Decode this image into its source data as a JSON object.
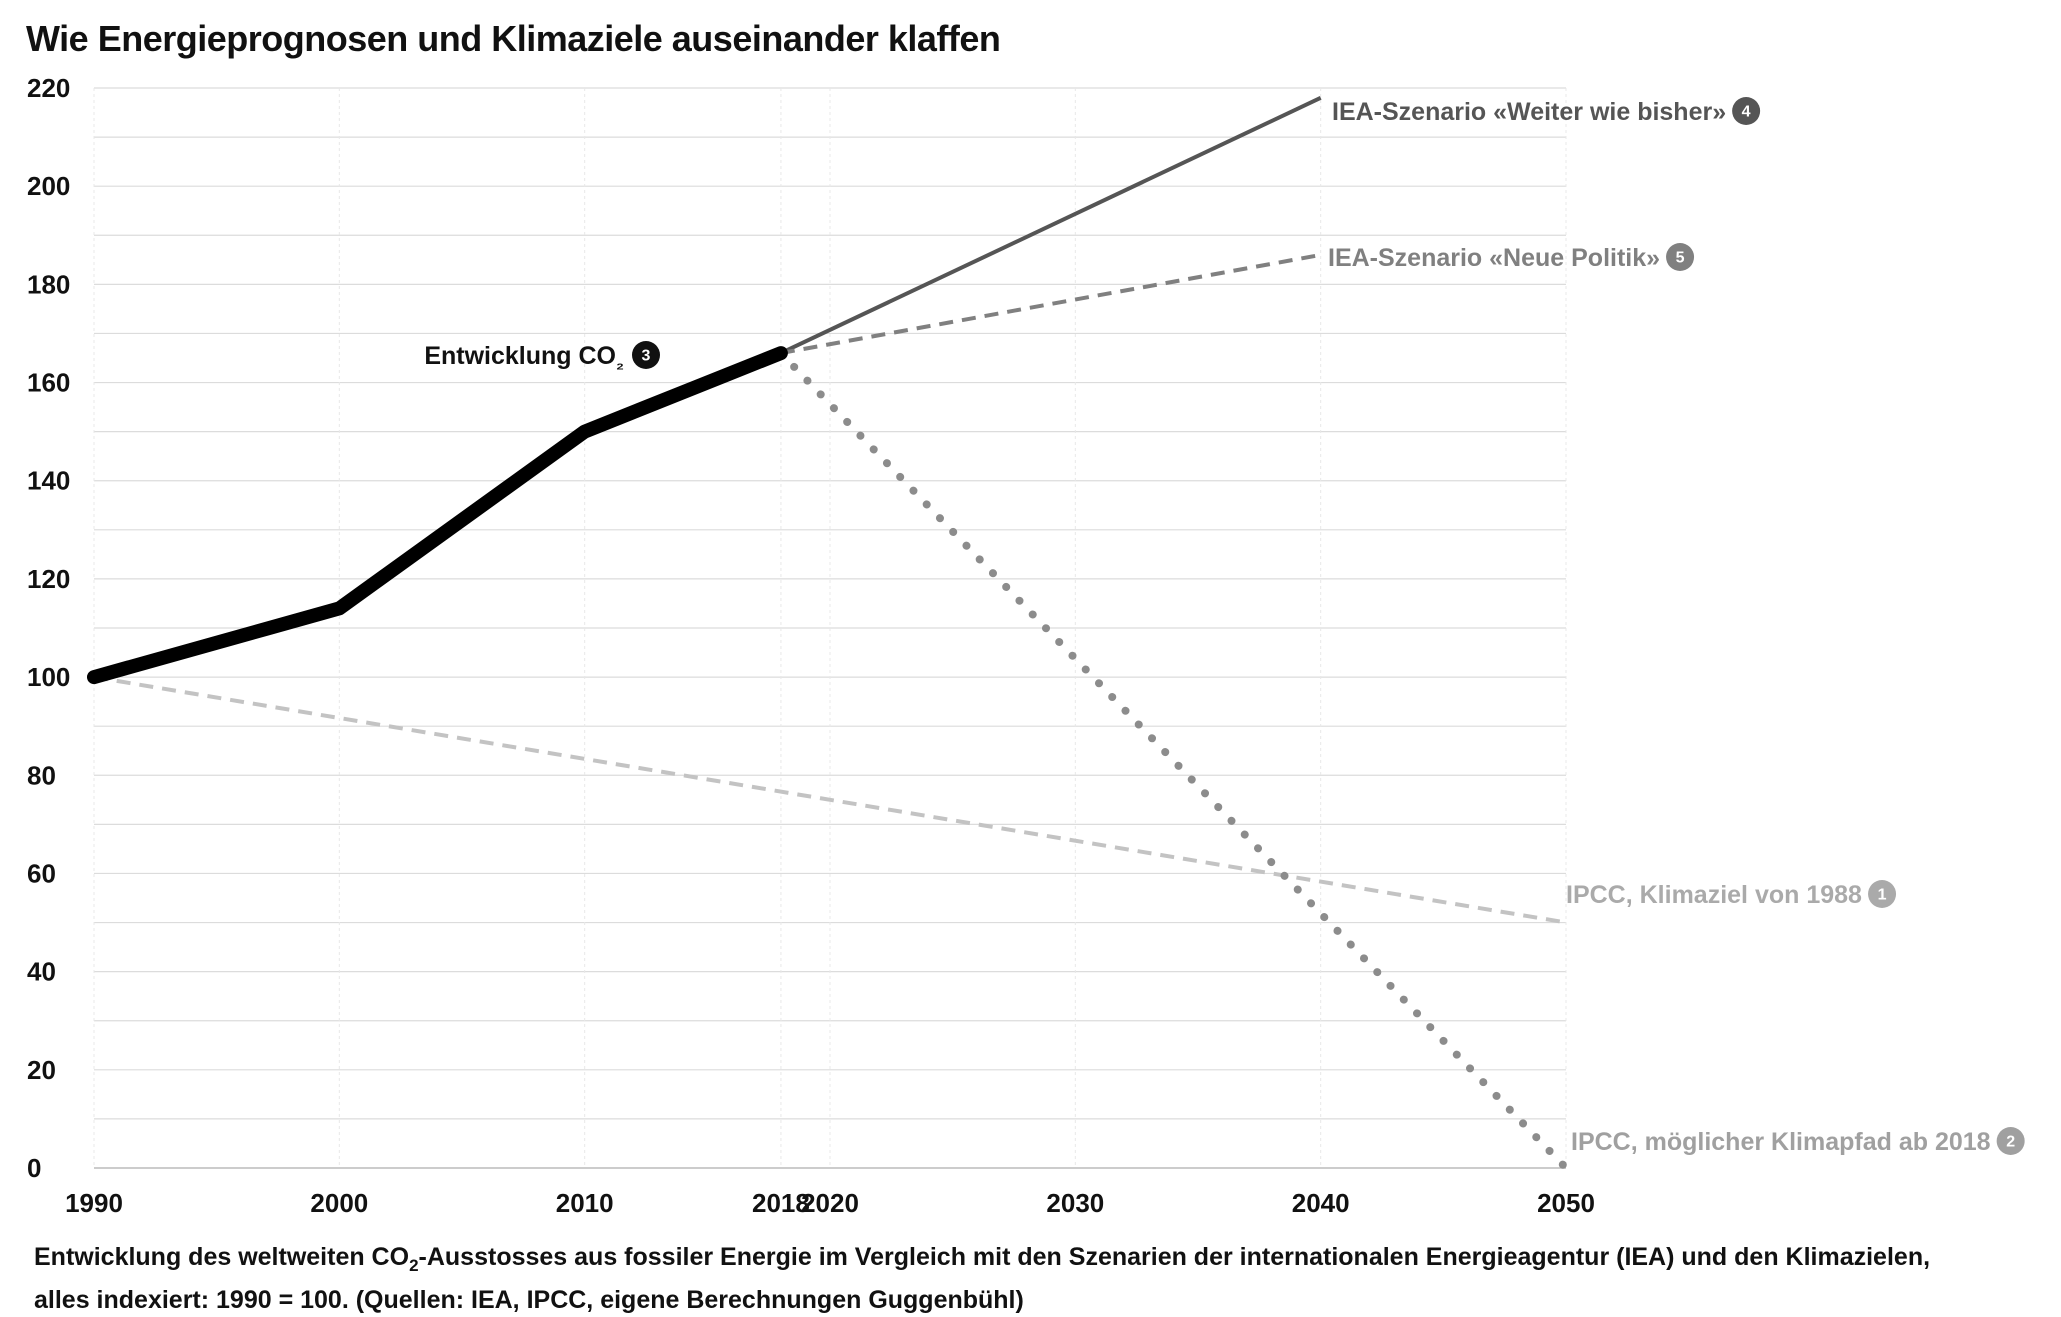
{
  "chart_data": {
    "type": "line",
    "title": "Wie Energieprognosen und Klimaziele auseinander klaffen",
    "x_ticks": [
      1990,
      2000,
      2010,
      2018,
      2020,
      2030,
      2040,
      2050
    ],
    "y_ticks": [
      0,
      20,
      40,
      60,
      80,
      100,
      120,
      140,
      160,
      180,
      200,
      220
    ],
    "xlim": [
      1990,
      2050
    ],
    "ylim": [
      0,
      220
    ],
    "grid": true,
    "series": [
      {
        "name": "Entwicklung CO₂",
        "badge": "3",
        "color": "#000000",
        "style": "solid-bold",
        "points": [
          [
            1990,
            100
          ],
          [
            2000,
            114
          ],
          [
            2010,
            150
          ],
          [
            2018,
            166
          ]
        ]
      },
      {
        "name": "IEA-Szenario «Weiter wie bisher»",
        "badge": "4",
        "color": "#555555",
        "style": "solid",
        "points": [
          [
            2018,
            166
          ],
          [
            2040,
            218
          ]
        ]
      },
      {
        "name": "IEA-Szenario «Neue Politik»",
        "badge": "5",
        "color": "#808080",
        "style": "dashed",
        "points": [
          [
            2018,
            166
          ],
          [
            2040,
            186
          ]
        ]
      },
      {
        "name": "IPCC, Klimaziel von 1988",
        "badge": "1",
        "color": "#c3c3c3",
        "style": "dashed",
        "points": [
          [
            1990,
            100
          ],
          [
            2050,
            50
          ]
        ]
      },
      {
        "name": "IPCC, möglicher Klimapfad ab 2018",
        "badge": "2",
        "color": "#8c8c8c",
        "style": "dotted",
        "points": [
          [
            2018,
            166
          ],
          [
            2050,
            0
          ]
        ]
      }
    ]
  },
  "caption": {
    "line1_pre": "Entwicklung des weltweiten CO",
    "line1_sub": "2",
    "line1_post": "-Ausstosses aus fossiler Energie im Vergleich mit den Szenarien der internationalen Energieagentur (IEA) und den Klimazielen,",
    "line2": "alles indexiert: 1990 = 100. (Quellen: IEA, IPCC, eigene Berechnungen Guggenbühl)"
  }
}
